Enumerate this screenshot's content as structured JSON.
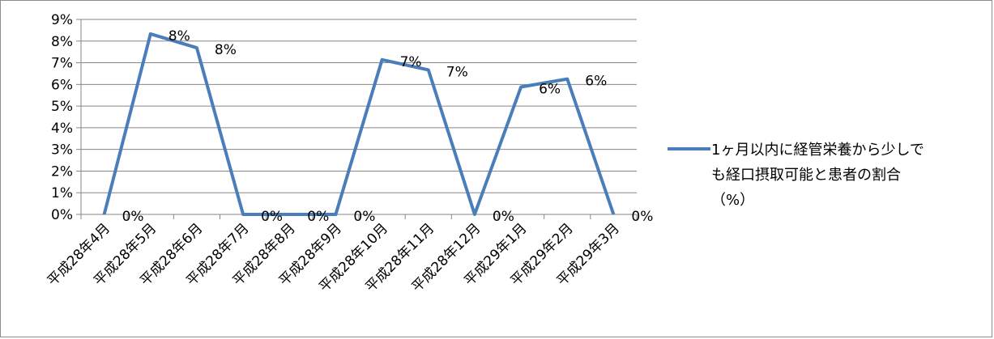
{
  "chart_data": {
    "type": "line",
    "categories": [
      "平成28年4月",
      "平成28年5月",
      "平成28年6月",
      "平成28年7月",
      "平成28年8月",
      "平成28年9月",
      "平成28年10月",
      "平成28年11月",
      "平成28年12月",
      "平成29年1月",
      "平成29年2月",
      "平成29年3月"
    ],
    "series": [
      {
        "name": "1ヶ月以内に経管栄養から少しでも経口摂取可能と患者の割合（%）",
        "values": [
          0,
          8.33,
          7.69,
          0,
          0,
          0,
          7.14,
          6.67,
          0,
          5.88,
          6.25,
          0
        ],
        "data_labels": [
          "0%",
          "8%",
          "8%",
          "0%",
          "0%",
          "0%",
          "7%",
          "7%",
          "0%",
          "6%",
          "6%",
          "0%"
        ],
        "color": "#4a7ebb"
      }
    ],
    "y_ticks": [
      "0%",
      "1%",
      "2%",
      "3%",
      "4%",
      "5%",
      "6%",
      "7%",
      "8%",
      "9%"
    ],
    "ylim": [
      0,
      9
    ],
    "grid": "horizontal",
    "legend_position": "right",
    "legend_lines": [
      "1ヶ月以内に経管栄養から少しで",
      "も経口摂取可能と患者の割合",
      "（%）"
    ],
    "title": "",
    "xlabel": "",
    "ylabel": ""
  }
}
